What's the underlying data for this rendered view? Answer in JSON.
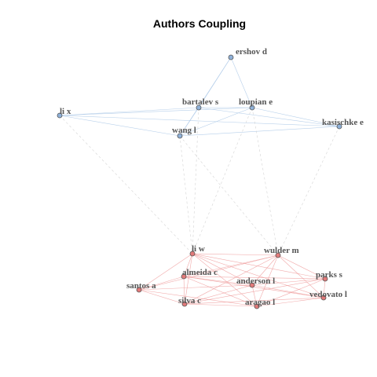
{
  "title": "Authors Coupling",
  "colors": {
    "cluster1_node": "#8fb1d9",
    "cluster1_edge": "#a9c7e6",
    "cluster2_node": "#e27a7a",
    "cluster2_edge": "#ef9b9b",
    "inter_edge": "#cfcfcf",
    "node_stroke": "#555555"
  },
  "nodes": [
    {
      "id": "ershov",
      "label": "ershov d",
      "cluster": 1
    },
    {
      "id": "bartalev",
      "label": "bartalev s",
      "cluster": 1
    },
    {
      "id": "loupian",
      "label": "loupian e",
      "cluster": 1
    },
    {
      "id": "lix",
      "label": "li x",
      "cluster": 1
    },
    {
      "id": "wangl",
      "label": "wang l",
      "cluster": 1
    },
    {
      "id": "kasischke",
      "label": "kasischke e",
      "cluster": 1
    },
    {
      "id": "liw",
      "label": "li w",
      "cluster": 2
    },
    {
      "id": "wulder",
      "label": "wulder m",
      "cluster": 2
    },
    {
      "id": "almeida",
      "label": "almeida c",
      "cluster": 2
    },
    {
      "id": "parks",
      "label": "parks s",
      "cluster": 2
    },
    {
      "id": "anderson",
      "label": "anderson l",
      "cluster": 2
    },
    {
      "id": "santos",
      "label": "santos a",
      "cluster": 2
    },
    {
      "id": "vedovato",
      "label": "vedovato l",
      "cluster": 2
    },
    {
      "id": "silva",
      "label": "silva c",
      "cluster": 2
    },
    {
      "id": "aragao",
      "label": "aragao l",
      "cluster": 2
    }
  ],
  "edges": [
    [
      "ershov",
      "bartalev"
    ],
    [
      "ershov",
      "loupian"
    ],
    [
      "ershov",
      "wangl"
    ],
    [
      "bartalev",
      "loupian"
    ],
    [
      "bartalev",
      "lix"
    ],
    [
      "bartalev",
      "wangl"
    ],
    [
      "bartalev",
      "kasischke"
    ],
    [
      "loupian",
      "lix"
    ],
    [
      "loupian",
      "wangl"
    ],
    [
      "loupian",
      "kasischke"
    ],
    [
      "lix",
      "wangl"
    ],
    [
      "lix",
      "kasischke"
    ],
    [
      "wangl",
      "kasischke"
    ],
    [
      "lix",
      "liw"
    ],
    [
      "wangl",
      "liw"
    ],
    [
      "bartalev",
      "liw"
    ],
    [
      "loupian",
      "liw"
    ],
    [
      "loupian",
      "wulder"
    ],
    [
      "wangl",
      "wulder"
    ],
    [
      "kasischke",
      "wulder"
    ],
    [
      "liw",
      "wulder"
    ],
    [
      "liw",
      "almeida"
    ],
    [
      "liw",
      "santos"
    ],
    [
      "liw",
      "silva"
    ],
    [
      "liw",
      "anderson"
    ],
    [
      "liw",
      "aragao"
    ],
    [
      "liw",
      "parks"
    ],
    [
      "liw",
      "vedovato"
    ],
    [
      "wulder",
      "almeida"
    ],
    [
      "wulder",
      "anderson"
    ],
    [
      "wulder",
      "parks"
    ],
    [
      "wulder",
      "vedovato"
    ],
    [
      "wulder",
      "aragao"
    ],
    [
      "wulder",
      "silva"
    ],
    [
      "wulder",
      "santos"
    ],
    [
      "almeida",
      "santos"
    ],
    [
      "almeida",
      "silva"
    ],
    [
      "almeida",
      "anderson"
    ],
    [
      "almeida",
      "aragao"
    ],
    [
      "almeida",
      "parks"
    ],
    [
      "almeida",
      "vedovato"
    ],
    [
      "santos",
      "silva"
    ],
    [
      "santos",
      "anderson"
    ],
    [
      "santos",
      "aragao"
    ],
    [
      "silva",
      "anderson"
    ],
    [
      "silva",
      "aragao"
    ],
    [
      "silva",
      "vedovato"
    ],
    [
      "silva",
      "parks"
    ],
    [
      "anderson",
      "aragao"
    ],
    [
      "anderson",
      "parks"
    ],
    [
      "anderson",
      "vedovato"
    ],
    [
      "aragao",
      "vedovato"
    ],
    [
      "aragao",
      "parks"
    ],
    [
      "parks",
      "vedovato"
    ]
  ]
}
